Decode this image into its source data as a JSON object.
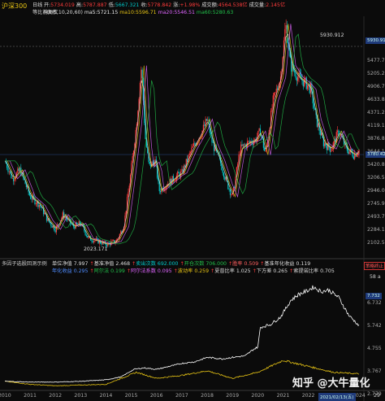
{
  "header": {
    "index_name": "沪深300",
    "period": "日线",
    "adjust": "等比前复权",
    "open_label": "开:",
    "open": "5734.019",
    "high_label": "高:",
    "high": "5787.887",
    "low_label": "低:",
    "low": "5667.321",
    "close_label": "收:",
    "close": "5778.842",
    "chg_label": "涨:",
    "chg": "+1.98%",
    "vol_label": "成交额:",
    "vol": "4564.538亿",
    "amt_label": "成交量:",
    "amt": "2.145亿",
    "ma_label": "MA(5,10,20,60)",
    "ma5_label": "ma5:",
    "ma5": "5721.15",
    "ma10_label": "ma10:",
    "ma10": "5596.71",
    "ma20_label": "ma20:",
    "ma20": "5546.51",
    "ma60_label": "ma60:",
    "ma60": "5280.63"
  },
  "price_axis": [
    "5477.766",
    "5205.224",
    "4906.708",
    "4633.867",
    "4371.226",
    "4119.178",
    "3876.837",
    "3644.140",
    "3420.801",
    "3206.564",
    "2946.061",
    "2745.917",
    "2493.767",
    "2284.167",
    "2102.571"
  ],
  "max_price_label": "5930.912",
  "min_price_label": "2023.171",
  "current_price_tag": "3780.420",
  "top_right_tag": "5930.912",
  "indicator": {
    "title": "多因子选股回测示例",
    "unit_nav_label": "单位净值",
    "unit_nav": "7.997",
    "bench_nav_label": "基准净值",
    "bench_nav": "2.468",
    "trades_label": "卖出次数",
    "trades": "692.000",
    "open_label": "开仓次数",
    "open": "706.000",
    "win_label": "胜率",
    "win": "0.509",
    "bench_ret_label": "基准年化收益",
    "bench_ret": "0.119",
    "annual_ret_label": "年化收益",
    "annual_ret": "0.295",
    "alpha_label": "阿尔法",
    "alpha": "0.199",
    "beta_label": "阿尔法系数",
    "beta": "0.095",
    "turnover_label": "波动率",
    "turnover": "0.259",
    "sharpe_label": "夏普比率",
    "sharpe": "1.025",
    "maxdd_label": "下方差",
    "maxdd": "0.265",
    "sortino_label": "索提诺比率",
    "sortino": "0.705",
    "right_tag": "策略终止",
    "right_small": "58 a",
    "tag_top": "7.732",
    "axis": [
      "6.732",
      "5.742",
      "4.755",
      "3.767",
      "2.779"
    ]
  },
  "years": [
    "2010",
    "2011",
    "2012",
    "2013",
    "2014",
    "2015",
    "2016",
    "2017",
    "2018",
    "2019",
    "2020",
    "2021",
    "2022",
    "2023",
    "2024"
  ],
  "date_tag": "2021/02/13(五)",
  "corner_tag": "29",
  "watermark": "知乎 @大牛量化",
  "colors": {
    "bg": "#0b0b0b",
    "up": "#ff3b3b",
    "down": "#00c8c8",
    "ma_white": "#e8e8e8",
    "ma_yellow": "#e7c414",
    "ma_pink": "#e066ff",
    "ma_green": "#22c04a",
    "nav": "#ffffff",
    "bench": "#e7c414"
  },
  "chart_data": {
    "type": "line",
    "title": "沪深300",
    "x": [
      "2010",
      "2011",
      "2012",
      "2013",
      "2014",
      "2015",
      "2016",
      "2017",
      "2018",
      "2019",
      "2020",
      "2021",
      "2022",
      "2023",
      "2024"
    ],
    "series": [
      {
        "name": "沪深300",
        "values": [
          3600,
          2950,
          2450,
          2500,
          2200,
          5200,
          3200,
          3600,
          4200,
          3000,
          4000,
          5900,
          4700,
          3900,
          3780
        ]
      },
      {
        "name": "单位净值",
        "values": [
          1.0,
          0.95,
          0.95,
          1.0,
          1.1,
          1.8,
          1.9,
          2.2,
          2.6,
          2.6,
          4.6,
          6.7,
          7.3,
          6.9,
          4.7
        ]
      },
      {
        "name": "基准净值",
        "values": [
          1.0,
          0.8,
          0.7,
          0.75,
          0.8,
          1.6,
          1.2,
          1.4,
          1.7,
          1.2,
          1.6,
          2.4,
          2.0,
          1.6,
          1.5
        ]
      }
    ]
  }
}
